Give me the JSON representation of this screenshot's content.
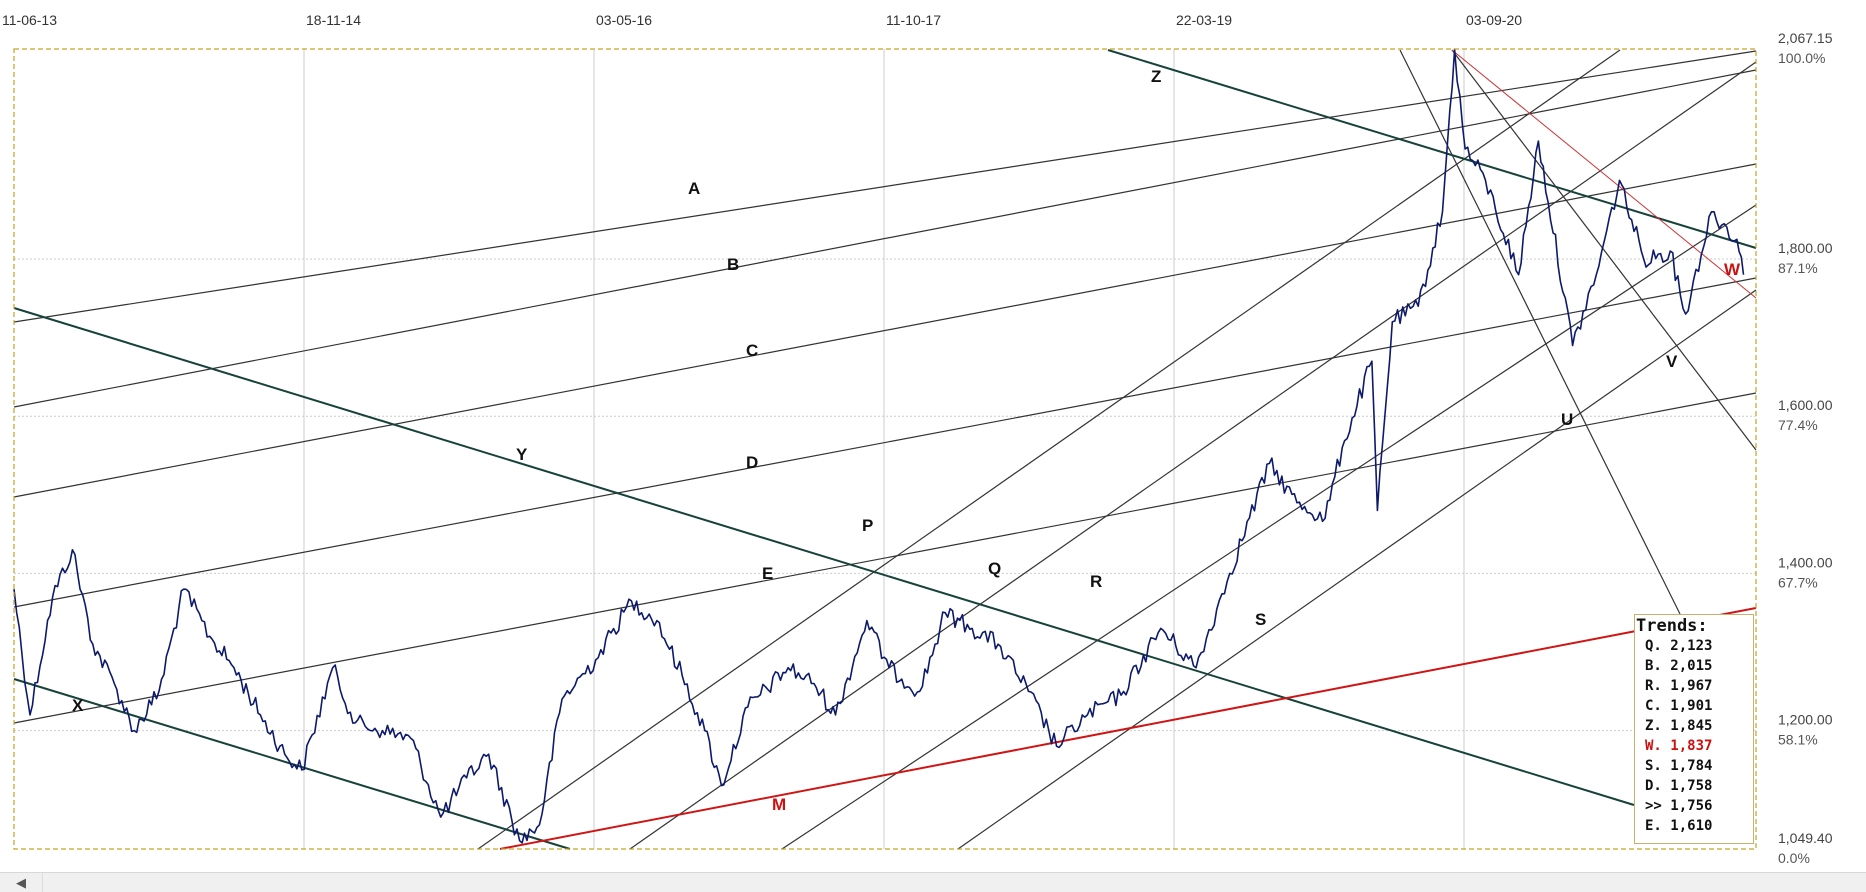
{
  "chart_data": {
    "type": "line",
    "x_ticks": [
      "11-06-13",
      "18-11-14",
      "03-05-16",
      "11-10-17",
      "22-03-19",
      "03-09-20"
    ],
    "y_ticks": [
      {
        "value": 2067.15,
        "label": "2,067.15",
        "pct": "100.0%"
      },
      {
        "value": 1800,
        "label": "1,800.00",
        "pct": "87.1%"
      },
      {
        "value": 1600,
        "label": "1,600.00",
        "pct": "77.4%"
      },
      {
        "value": 1400,
        "label": "1,400.00",
        "pct": "67.7%"
      },
      {
        "value": 1200,
        "label": "1,200.00",
        "pct": "58.1%"
      },
      {
        "value": 1049.4,
        "label": "1,049.40",
        "pct": "0.0%"
      }
    ],
    "ylim": [
      1049.4,
      2067.15
    ],
    "grid": true,
    "series": [
      {
        "color": "#0d1a6b",
        "points": [
          [
            "2013-06-11",
            1380
          ],
          [
            "2013-07-10",
            1220
          ],
          [
            "2013-08-20",
            1370
          ],
          [
            "2013-09-25",
            1430
          ],
          [
            "2013-11-01",
            1310
          ],
          [
            "2013-12-10",
            1260
          ],
          [
            "2014-01-15",
            1200
          ],
          [
            "2014-03-01",
            1250
          ],
          [
            "2014-04-15",
            1380
          ],
          [
            "2014-06-01",
            1320
          ],
          [
            "2014-07-15",
            1280
          ],
          [
            "2014-09-01",
            1220
          ],
          [
            "2014-10-15",
            1170
          ],
          [
            "2014-11-15",
            1150
          ],
          [
            "2015-01-10",
            1280
          ],
          [
            "2015-02-20",
            1210
          ],
          [
            "2015-04-10",
            1200
          ],
          [
            "2015-06-01",
            1190
          ],
          [
            "2015-07-25",
            1090
          ],
          [
            "2015-09-10",
            1140
          ],
          [
            "2015-10-20",
            1170
          ],
          [
            "2015-12-15",
            1060
          ],
          [
            "2016-01-20",
            1080
          ],
          [
            "2016-03-01",
            1240
          ],
          [
            "2016-05-01",
            1290
          ],
          [
            "2016-07-05",
            1365
          ],
          [
            "2016-08-20",
            1340
          ],
          [
            "2016-10-05",
            1270
          ],
          [
            "2016-11-15",
            1200
          ],
          [
            "2016-12-15",
            1130
          ],
          [
            "2017-02-01",
            1230
          ],
          [
            "2017-04-15",
            1280
          ],
          [
            "2017-06-01",
            1260
          ],
          [
            "2017-07-10",
            1220
          ],
          [
            "2017-09-05",
            1340
          ],
          [
            "2017-10-15",
            1280
          ],
          [
            "2017-12-10",
            1250
          ],
          [
            "2018-01-25",
            1350
          ],
          [
            "2018-03-15",
            1330
          ],
          [
            "2018-05-01",
            1310
          ],
          [
            "2018-06-25",
            1250
          ],
          [
            "2018-08-15",
            1180
          ],
          [
            "2018-10-10",
            1220
          ],
          [
            "2018-12-10",
            1245
          ],
          [
            "2019-02-20",
            1330
          ],
          [
            "2019-04-25",
            1280
          ],
          [
            "2019-06-25",
            1400
          ],
          [
            "2019-09-05",
            1540
          ],
          [
            "2019-10-25",
            1490
          ],
          [
            "2019-12-15",
            1470
          ],
          [
            "2020-01-15",
            1560
          ],
          [
            "2020-03-09",
            1670
          ],
          [
            "2020-03-19",
            1480
          ],
          [
            "2020-04-15",
            1720
          ],
          [
            "2020-06-01",
            1740
          ],
          [
            "2020-07-15",
            1860
          ],
          [
            "2020-08-06",
            2067
          ],
          [
            "2020-08-25",
            1940
          ],
          [
            "2020-10-01",
            1900
          ],
          [
            "2020-11-30",
            1780
          ],
          [
            "2021-01-05",
            1950
          ],
          [
            "2021-03-08",
            1690
          ],
          [
            "2021-04-20",
            1780
          ],
          [
            "2021-06-01",
            1900
          ],
          [
            "2021-07-15",
            1800
          ],
          [
            "2021-09-01",
            1810
          ],
          [
            "2021-09-29",
            1730
          ],
          [
            "2021-11-15",
            1860
          ],
          [
            "2021-12-31",
            1825
          ],
          [
            "2022-01-12",
            1780
          ]
        ]
      }
    ],
    "trend_lines": [
      {
        "label": "A",
        "color": "#111111"
      },
      {
        "label": "B",
        "color": "#111111"
      },
      {
        "label": "C",
        "color": "#111111"
      },
      {
        "label": "D",
        "color": "#111111"
      },
      {
        "label": "E",
        "color": "#111111"
      },
      {
        "label": "P",
        "color": "#111111"
      },
      {
        "label": "Q",
        "color": "#111111"
      },
      {
        "label": "R",
        "color": "#111111"
      },
      {
        "label": "S",
        "color": "#111111"
      },
      {
        "label": "U",
        "color": "#111111"
      },
      {
        "label": "V",
        "color": "#111111"
      },
      {
        "label": "W",
        "color": "#cc1111"
      },
      {
        "label": "M",
        "color": "#cc1111"
      },
      {
        "label": "X",
        "color": "#111111"
      },
      {
        "label": "Y",
        "color": "#111111"
      },
      {
        "label": "Z",
        "color": "#111111"
      }
    ]
  },
  "trends": {
    "title": "Trends:",
    "items": [
      {
        "label": "Q. 2,123",
        "color": "#111111"
      },
      {
        "label": "B. 2,015",
        "color": "#111111"
      },
      {
        "label": "R. 1,967",
        "color": "#111111"
      },
      {
        "label": "C. 1,901",
        "color": "#111111"
      },
      {
        "label": "Z. 1,845",
        "color": "#111111"
      },
      {
        "label": "W. 1,837",
        "color": "#cc1111"
      },
      {
        "label": "S. 1,784",
        "color": "#111111"
      },
      {
        "label": "D. 1,758",
        "color": "#111111"
      },
      {
        "label": ">> 1,756",
        "color": "#111111"
      },
      {
        "label": "E. 1,610",
        "color": "#111111"
      }
    ]
  },
  "scrollbar": {
    "left_arrow": "◀"
  }
}
